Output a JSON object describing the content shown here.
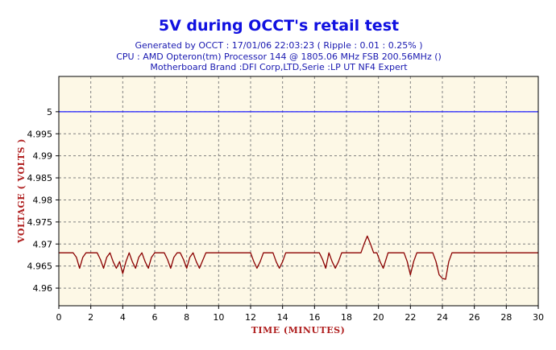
{
  "chart_data": {
    "type": "line",
    "title": "5V during OCCT's retail test",
    "subtitle_lines": [
      "Generated by OCCT : 17/01/06 22:03:23 ( Ripple : 0.01 : 0.25% )",
      "CPU : AMD Opteron(tm) Processor 144    @ 1805.06 MHz FSB 200.56MHz ()",
      "Motherboard Brand :DFI Corp,LTD,Serie :LP UT NF4 Expert"
    ],
    "xlabel": "TIME (MINUTES)",
    "ylabel": "VOLTAGE ( VOLTS )",
    "xlim": [
      0,
      30
    ],
    "ylim": [
      4.956,
      5.008
    ],
    "xticks": [
      "0",
      "2",
      "4",
      "6",
      "8",
      "10",
      "12",
      "14",
      "16",
      "18",
      "20",
      "22",
      "24",
      "26",
      "28",
      "30"
    ],
    "yticks": [
      "5",
      "4.995",
      "4.99",
      "4.985",
      "4.98",
      "4.975",
      "4.97",
      "4.965",
      "4.96"
    ],
    "grid": true,
    "colors": {
      "background": "#fdf8e6",
      "voltage_line": "#8b0000",
      "reference_line": "#1a1aff",
      "grid": "#808080"
    },
    "series": [
      {
        "x": [
          0,
          0.9,
          1.1,
          1.3,
          1.5,
          1.7,
          1.9,
          2.1,
          2.4,
          2.6,
          2.8,
          3.0,
          3.2,
          3.4,
          3.6,
          3.8,
          4.0,
          4.2,
          4.4,
          4.6,
          4.8,
          5.0,
          5.2,
          5.4,
          5.6,
          5.8,
          6.0,
          6.4,
          6.6,
          6.8,
          7.0,
          7.2,
          7.4,
          7.6,
          7.8,
          8.0,
          8.2,
          8.4,
          8.6,
          8.8,
          9.2,
          9.4,
          9.6,
          10.0,
          12.0,
          12.2,
          12.4,
          12.6,
          12.8,
          13.0,
          13.4,
          13.6,
          13.8,
          14.0,
          14.2,
          16.3,
          16.5,
          16.7,
          16.9,
          17.1,
          17.3,
          17.5,
          17.7,
          17.9,
          18.1,
          18.3,
          18.9,
          19.1,
          19.3,
          19.5,
          19.7,
          19.9,
          20.1,
          20.3,
          20.6,
          20.8,
          21.0,
          21.6,
          21.8,
          22.0,
          22.2,
          22.4,
          23.4,
          23.6,
          23.8,
          24.0,
          24.2,
          24.4,
          24.6,
          30
        ],
        "y": [
          4.968,
          4.968,
          4.967,
          4.9645,
          4.967,
          4.968,
          4.968,
          4.968,
          4.968,
          4.9665,
          4.9645,
          4.967,
          4.968,
          4.966,
          4.9645,
          4.966,
          4.9633,
          4.966,
          4.968,
          4.966,
          4.9645,
          4.967,
          4.968,
          4.966,
          4.9645,
          4.967,
          4.968,
          4.968,
          4.968,
          4.9665,
          4.9645,
          4.967,
          4.968,
          4.968,
          4.9665,
          4.9645,
          4.967,
          4.968,
          4.966,
          4.9645,
          4.968,
          4.968,
          4.968,
          4.968,
          4.968,
          4.966,
          4.9645,
          4.966,
          4.968,
          4.968,
          4.968,
          4.966,
          4.9645,
          4.966,
          4.968,
          4.968,
          4.9665,
          4.9645,
          4.968,
          4.966,
          4.9645,
          4.966,
          4.968,
          4.968,
          4.968,
          4.968,
          4.968,
          4.97,
          4.9718,
          4.97,
          4.968,
          4.968,
          4.966,
          4.9645,
          4.968,
          4.968,
          4.968,
          4.968,
          4.966,
          4.963,
          4.966,
          4.968,
          4.968,
          4.966,
          4.963,
          4.9622,
          4.962,
          4.966,
          4.968,
          4.968
        ]
      }
    ],
    "reference_line": 5.0
  }
}
